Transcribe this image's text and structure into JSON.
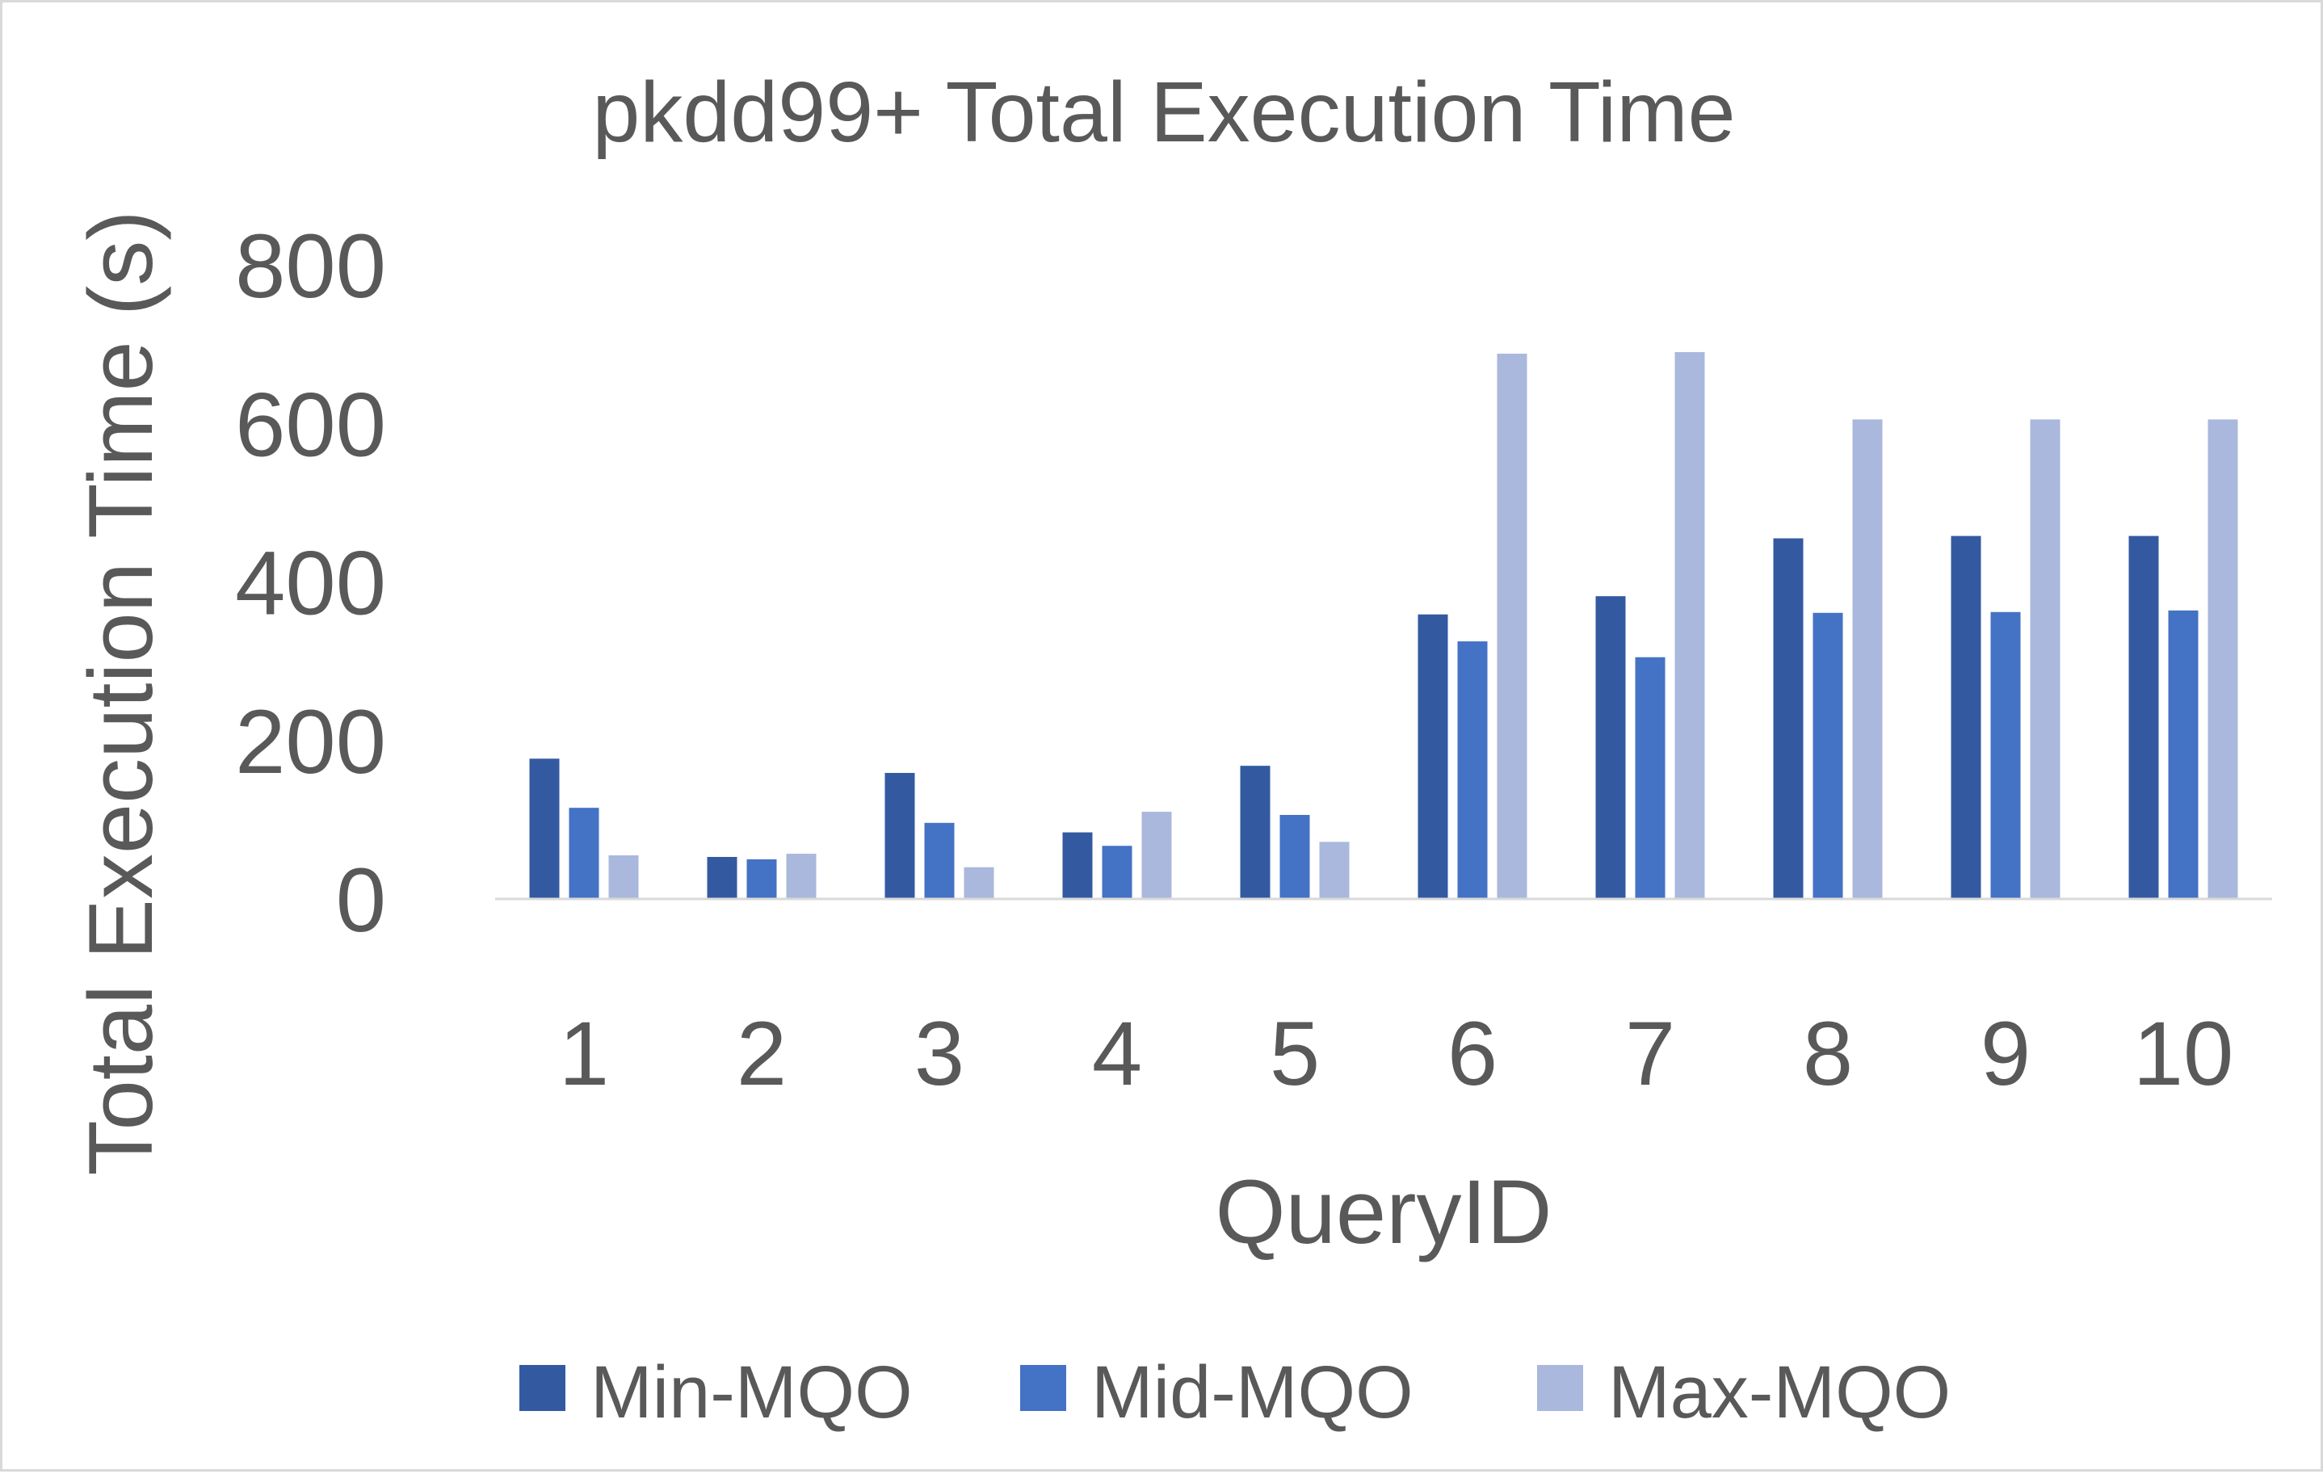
{
  "chart_data": {
    "type": "bar",
    "title": "pkdd99+ Total Execution Time",
    "xlabel": "QueryID",
    "ylabel": "Total Execution Time (s)",
    "categories": [
      "1",
      "2",
      "3",
      "4",
      "5",
      "6",
      "7",
      "8",
      "9",
      "10"
    ],
    "ylim": [
      0,
      800
    ],
    "yticks": [
      "0",
      "200",
      "400",
      "600",
      "800"
    ],
    "grid": false,
    "legend_position": "bottom",
    "series": [
      {
        "name": "Min-MQO",
        "color": "#335aa1",
        "values": [
          177,
          53,
          159,
          84,
          168,
          359,
          382,
          455,
          458,
          458
        ]
      },
      {
        "name": "Mid-MQO",
        "color": "#4472c4",
        "values": [
          115,
          50,
          96,
          67,
          106,
          325,
          305,
          361,
          362,
          364
        ]
      },
      {
        "name": "Max-MQO",
        "color": "#a9b8dc",
        "values": [
          55,
          57,
          40,
          110,
          72,
          688,
          690,
          605,
          605,
          605
        ]
      }
    ]
  }
}
